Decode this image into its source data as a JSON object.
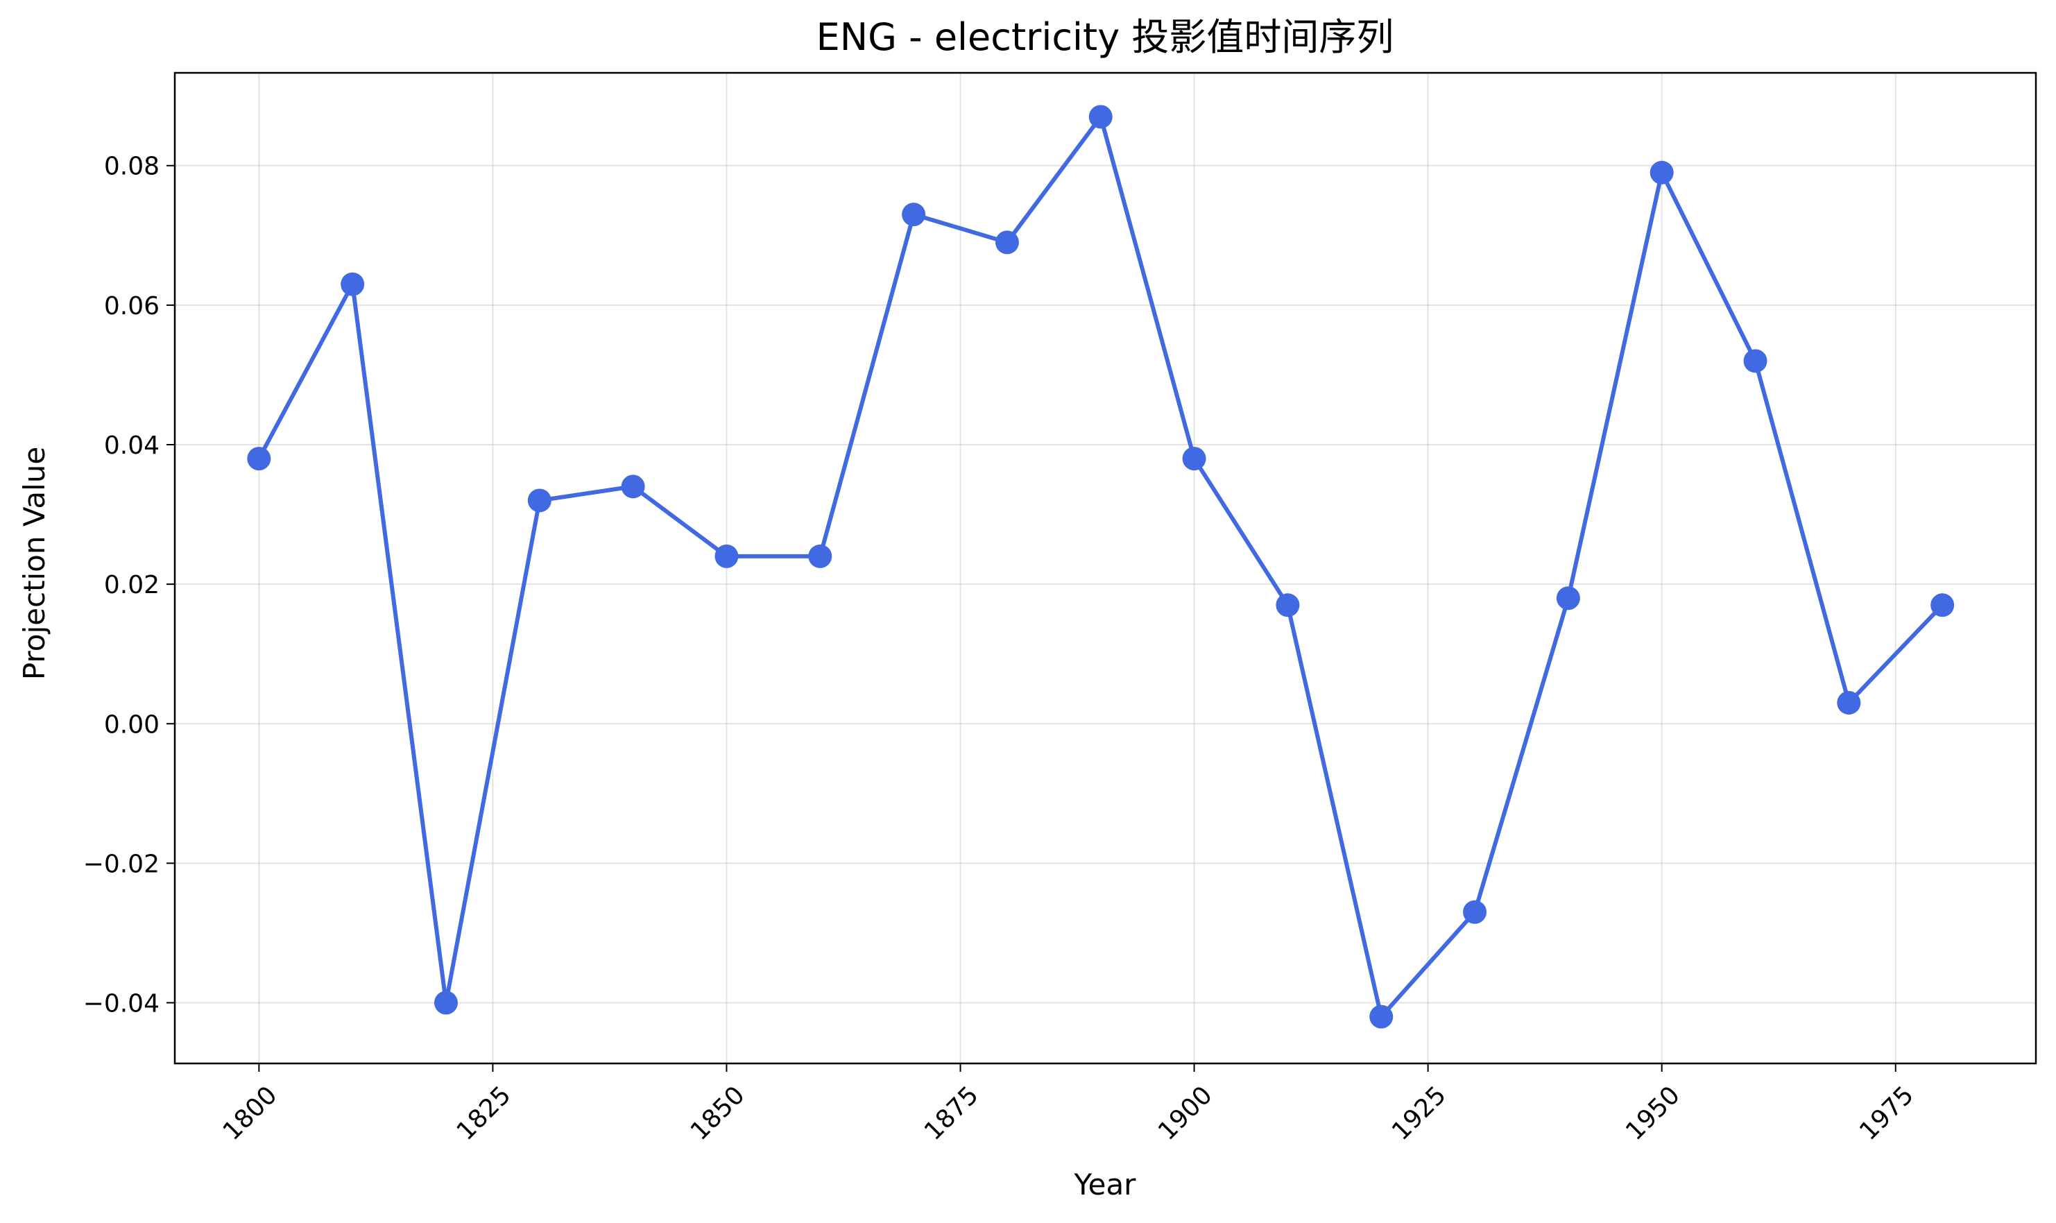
{
  "chart_data": {
    "type": "line",
    "title": "ENG - electricity 投影值时间序列",
    "xlabel": "Year",
    "ylabel": "Projection Value",
    "xlim": [
      1791,
      1990
    ],
    "ylim": [
      -0.0487,
      0.0933
    ],
    "grid": true,
    "x_ticks": [
      1800,
      1825,
      1850,
      1875,
      1900,
      1925,
      1950,
      1975
    ],
    "x_tick_labels": [
      "1800",
      "1825",
      "1850",
      "1875",
      "1900",
      "1925",
      "1950",
      "1975"
    ],
    "y_ticks": [
      -0.04,
      -0.02,
      0.0,
      0.02,
      0.04,
      0.06,
      0.08
    ],
    "y_tick_labels": [
      "−0.04",
      "−0.02",
      "0.00",
      "0.02",
      "0.04",
      "0.06",
      "0.08"
    ],
    "series": [
      {
        "color": "#4169e1",
        "marker": "circle",
        "x": [
          1800,
          1810,
          1820,
          1830,
          1840,
          1850,
          1860,
          1870,
          1880,
          1890,
          1900,
          1910,
          1920,
          1930,
          1940,
          1950,
          1960,
          1970,
          1980
        ],
        "y": [
          0.038,
          0.063,
          -0.04,
          0.032,
          0.034,
          0.024,
          0.024,
          0.073,
          0.069,
          0.087,
          0.038,
          0.017,
          -0.042,
          -0.027,
          0.018,
          0.079,
          0.052,
          0.003,
          0.017
        ]
      }
    ]
  }
}
